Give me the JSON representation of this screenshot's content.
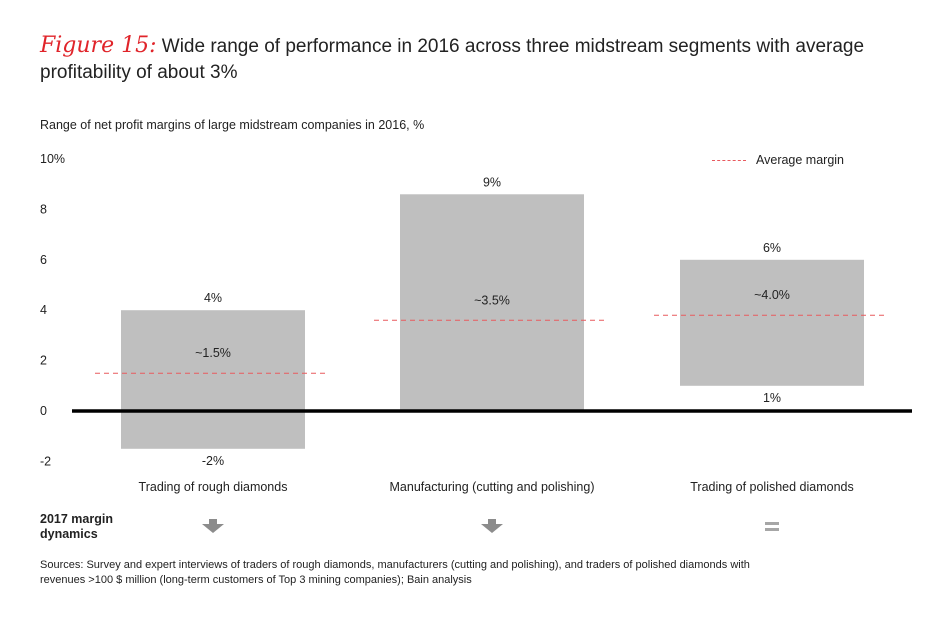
{
  "title": {
    "figure_label": "Figure 15:",
    "text": "Wide range of performance in 2016 across three midstream segments with average profitability of about 3%"
  },
  "subtitle": "Range of net profit margins of large midstream companies in 2016, %",
  "legend": {
    "label": "Average margin"
  },
  "dynamics": {
    "label": "2017 margin dynamics",
    "items": [
      {
        "category": "Trading of rough diamonds",
        "symbol": "down-arrow-icon"
      },
      {
        "category": "Manufacturing (cutting and polishing)",
        "symbol": "down-arrow-icon"
      },
      {
        "category": "Trading of polished diamonds",
        "symbol": "equals-icon"
      }
    ]
  },
  "sources": "Sources: Survey and expert interviews of traders of rough diamonds, manufacturers (cutting and polishing), and traders of polished diamonds with revenues >100 $ million (long-term customers of Top 3 mining companies); Bain analysis",
  "colors": {
    "bar": "#bfbfbf",
    "average_line": "#e85a5f",
    "axis": "#000000",
    "accent": "#e0242a"
  },
  "chart_data": {
    "type": "bar",
    "subtype": "floating-range",
    "categories": [
      "Trading of rough diamonds",
      "Manufacturing (cutting and polishing)",
      "Trading of polished diamonds"
    ],
    "ranges": [
      {
        "low": -1.5,
        "high": 4.0,
        "low_label": "-2%",
        "high_label": "4%",
        "average": 1.5,
        "average_label": "~1.5%"
      },
      {
        "low": 0.0,
        "high": 8.6,
        "low_label": "",
        "high_label": "9%",
        "average": 3.6,
        "average_label": "~3.5%"
      },
      {
        "low": 1.0,
        "high": 6.0,
        "low_label": "1%",
        "high_label": "6%",
        "average": 3.8,
        "average_label": "~4.0%"
      }
    ],
    "yticks": [
      {
        "value": 10,
        "label": "10%"
      },
      {
        "value": 8,
        "label": "8"
      },
      {
        "value": 6,
        "label": "6"
      },
      {
        "value": 4,
        "label": "4"
      },
      {
        "value": 2,
        "label": "2"
      },
      {
        "value": 0,
        "label": "0"
      },
      {
        "value": -2,
        "label": "-2"
      }
    ],
    "ylim": [
      -2,
      10
    ],
    "grid": false,
    "legend_position": "top-right"
  }
}
